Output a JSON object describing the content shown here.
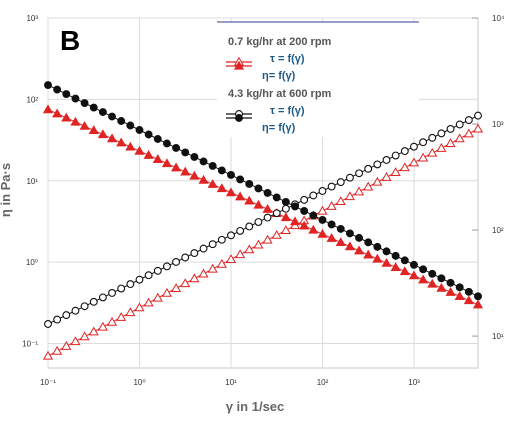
{
  "chart_data": {
    "type": "scatter",
    "panel_label": "B",
    "xlabel": "γ in 1/sec",
    "ylabel": "η in Pa·s",
    "x_scale": "log",
    "y_scale": "log",
    "xlim": [
      0.1,
      5000
    ],
    "ylim_left": [
      0.05,
      1000
    ],
    "ylim_right": [
      5,
      10000
    ],
    "grid": true,
    "x_ticks": [
      "10⁻¹",
      "10⁰",
      "10¹",
      "10²",
      "10³"
    ],
    "y_left_ticks": [
      "10³",
      "10²",
      "10¹",
      "10⁰",
      "10⁻¹"
    ],
    "y_right_ticks": [
      "10⁴",
      "10³",
      "10²",
      "10¹"
    ],
    "legend": {
      "placement": "top-right",
      "groups": [
        {
          "title": "0.7 kg/hr at 200 rpm",
          "entries": [
            "τ = f(γ)",
            "η= f(γ)"
          ]
        },
        {
          "title": "4.3 kg/hr at 600 rpm",
          "entries": [
            "τ = f(γ)",
            "η= f(γ)"
          ]
        }
      ]
    },
    "series": [
      {
        "group": "0.7 kg/hr at 200 rpm",
        "quantity": "τ",
        "axis": "right",
        "marker": "open-triangle",
        "color": "#e02424",
        "x_range": [
          0.1,
          5000
        ],
        "y_range": [
          6.5,
          900
        ],
        "n_points": 48
      },
      {
        "group": "0.7 kg/hr at 200 rpm",
        "quantity": "η",
        "axis": "left",
        "marker": "filled-triangle",
        "color": "#e02424",
        "x_range": [
          0.1,
          5000
        ],
        "y_range": [
          75,
          0.3
        ],
        "n_points": 48
      },
      {
        "group": "4.3 kg/hr at 600 rpm",
        "quantity": "τ",
        "axis": "right",
        "marker": "open-circle",
        "color": "#111111",
        "x_range": [
          0.1,
          5000
        ],
        "y_range": [
          13,
          1200
        ],
        "n_points": 48
      },
      {
        "group": "4.3 kg/hr at 600 rpm",
        "quantity": "η",
        "axis": "left",
        "marker": "filled-circle",
        "color": "#111111",
        "x_range": [
          0.1,
          5000
        ],
        "y_range": [
          150,
          0.38
        ],
        "n_points": 48
      }
    ]
  }
}
